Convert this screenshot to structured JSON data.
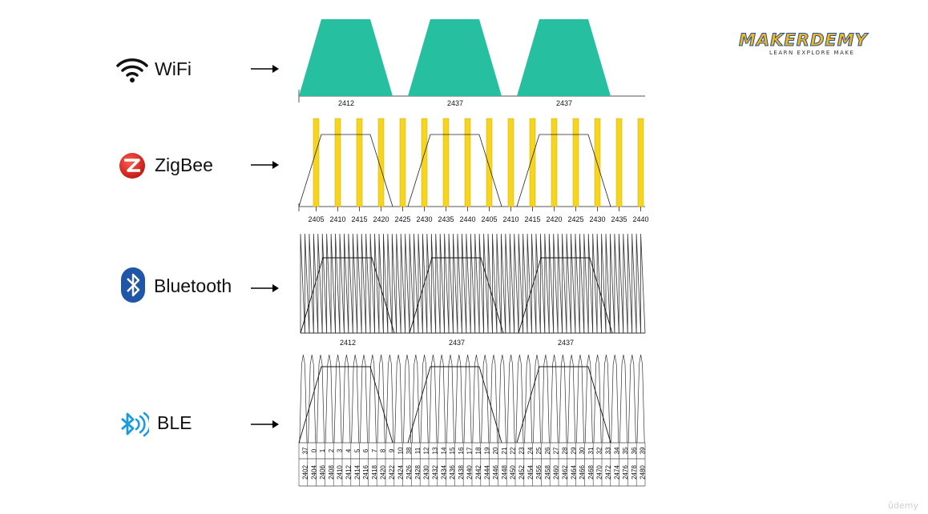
{
  "rows": [
    {
      "id": "wifi",
      "label": "WiFi",
      "icon": "wifi-icon"
    },
    {
      "id": "zigbee",
      "label": "ZigBee",
      "icon": "zigbee-icon"
    },
    {
      "id": "bluetooth",
      "label": "Bluetooth",
      "icon": "bluetooth-icon"
    },
    {
      "id": "ble",
      "label": "BLE",
      "icon": "bluetooth-le-icon"
    }
  ],
  "wifi": {
    "channel_labels": [
      "2412",
      "2437",
      "2437"
    ],
    "fill_color": "#26bfa0"
  },
  "zigbee": {
    "channel_labels": [
      "2405",
      "2410",
      "2415",
      "2420",
      "2425",
      "2430",
      "2435",
      "2440",
      "2405",
      "2410",
      "2415",
      "2420",
      "2425",
      "2430",
      "2435",
      "2440"
    ],
    "bar_color": "#f7d51d"
  },
  "bluetooth": {
    "channel_labels": [
      "2412",
      "2437",
      "2437"
    ],
    "channel_count": 79
  },
  "ble": {
    "channel_numbers": [
      "37",
      "0",
      "1",
      "2",
      "3",
      "4",
      "5",
      "6",
      "7",
      "8",
      "9",
      "10",
      "38",
      "11",
      "12",
      "13",
      "14",
      "15",
      "16",
      "17",
      "18",
      "19",
      "20",
      "21",
      "22",
      "23",
      "24",
      "25",
      "26",
      "27",
      "28",
      "29",
      "30",
      "31",
      "32",
      "33",
      "34",
      "35",
      "36",
      "39"
    ],
    "frequencies": [
      "2402",
      "2404",
      "2406",
      "2408",
      "2410",
      "2412",
      "2414",
      "2416",
      "2418",
      "2420",
      "2422",
      "2424",
      "2426",
      "2428",
      "2430",
      "2432",
      "2434",
      "2436",
      "2438",
      "2440",
      "2442",
      "2444",
      "2446",
      "2448",
      "2450",
      "2452",
      "2454",
      "2456",
      "2458",
      "2460",
      "2462",
      "2464",
      "2466",
      "2468",
      "2470",
      "2472",
      "2474",
      "2476",
      "2478",
      "2480"
    ]
  },
  "logo": {
    "name": "MAKERDEMY",
    "tagline": "LEARN  EXPLORE  MAKE",
    "colors": {
      "fill": "#f5b81b",
      "outline": "#1f4fa0"
    }
  },
  "watermark": "ûdemy"
}
